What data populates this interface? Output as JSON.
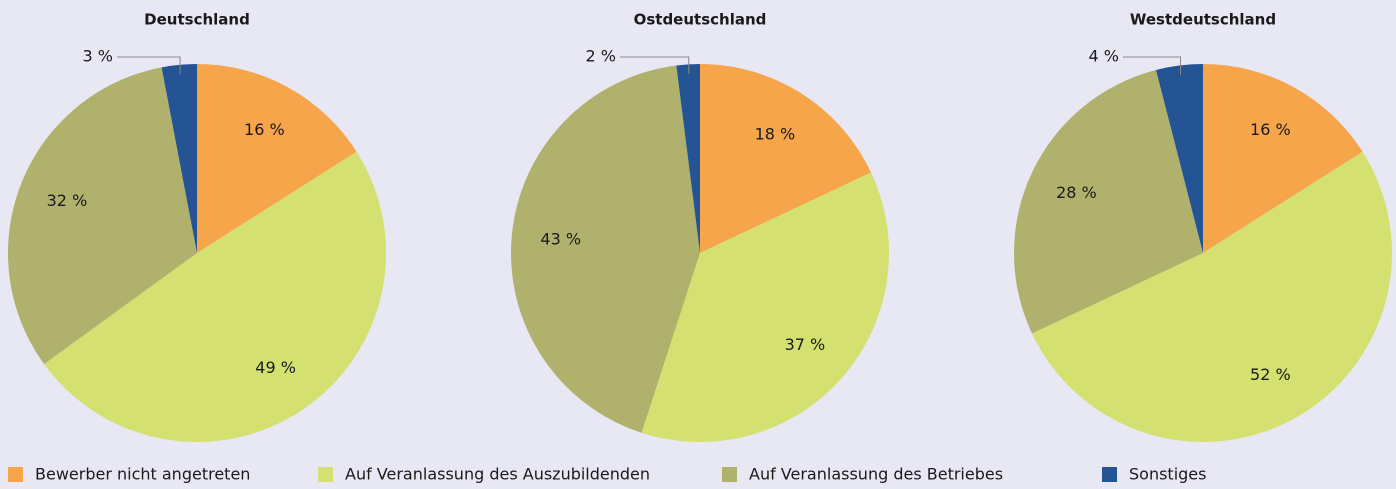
{
  "chart_data": [
    {
      "type": "pie",
      "title": "Deutschland",
      "categories": [
        "Bewerber nicht angetreten",
        "Auf Veranlassung des Auszubildenden",
        "Auf Veranlassung des Betriebes",
        "Sonstiges"
      ],
      "values": [
        16,
        49,
        32,
        3
      ],
      "value_labels": [
        "16 %",
        "49 %",
        "32 %",
        "3 %"
      ],
      "colors": [
        "#f7a54b",
        "#d4e06f",
        "#b0b16d",
        "#245493"
      ]
    },
    {
      "type": "pie",
      "title": "Ostdeutschland",
      "categories": [
        "Bewerber nicht angetreten",
        "Auf Veranlassung des Auszubildenden",
        "Auf Veranlassung des Betriebes",
        "Sonstiges"
      ],
      "values": [
        18,
        37,
        43,
        2
      ],
      "value_labels": [
        "18 %",
        "37 %",
        "43 %",
        "2 %"
      ],
      "colors": [
        "#f7a54b",
        "#d4e06f",
        "#b0b16d",
        "#245493"
      ]
    },
    {
      "type": "pie",
      "title": "Westdeutschland",
      "categories": [
        "Bewerber nicht angetreten",
        "Auf Veranlassung des Auszubildenden",
        "Auf Veranlassung des Betriebes",
        "Sonstiges"
      ],
      "values": [
        16,
        52,
        28,
        4
      ],
      "value_labels": [
        "16 %",
        "52 %",
        "28 %",
        "4 %"
      ],
      "colors": [
        "#f7a54b",
        "#d4e06f",
        "#b0b16d",
        "#245493"
      ]
    }
  ]
}
